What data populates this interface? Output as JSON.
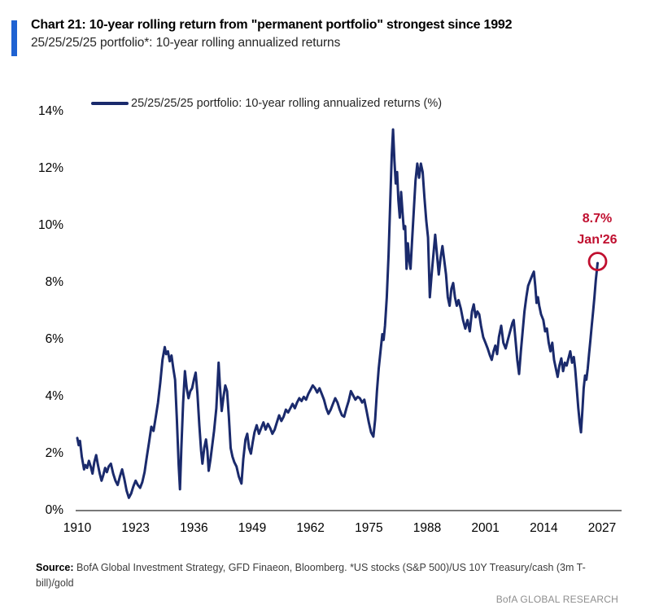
{
  "header": {
    "title": "Chart 21: 10-year rolling return from \"permanent portfolio\" strongest since 1992",
    "subtitle": "25/25/25/25 portfolio*: 10-year rolling annualized returns",
    "accent_color": "#1f62d2"
  },
  "legend": {
    "label": "25/25/25/25 portfolio: 10-year rolling annualized returns (%)"
  },
  "annotation": {
    "value": "8.7%",
    "date": "Jan'26",
    "color": "#c00f2f"
  },
  "footer": {
    "source_label": "Source:",
    "source_line1": "BofA Global Investment Strategy, GFD Finaeon, Bloomberg. *US stocks (S&P 500)/US 10Y Treasury/cash (3m T-",
    "source_line2": "bill)/gold",
    "branding": "BofA GLOBAL RESEARCH"
  },
  "chart_data": {
    "type": "line",
    "title": "25/25/25/25 portfolio: 10-year rolling annualized returns (%)",
    "xlabel": "",
    "ylabel": "",
    "xlim": [
      1909,
      2031
    ],
    "ylim": [
      0,
      14
    ],
    "grid": false,
    "legend_position": "top-left",
    "x_ticks": [
      1910,
      1923,
      1936,
      1949,
      1962,
      1975,
      1988,
      2001,
      2014,
      2027
    ],
    "y_ticks": [
      0,
      2,
      4,
      6,
      8,
      10,
      12,
      14
    ],
    "y_tick_suffix": "%",
    "axis_color": "#4d4d4d",
    "highlight_point": {
      "x": 2026.0,
      "y": 8.7,
      "label": "8.7%",
      "date": "Jan'26",
      "ring_color": "#c00f2f"
    },
    "series": [
      {
        "name": "25/25/25/25 portfolio: 10-year rolling annualized returns (%)",
        "color": "#1a2a6c",
        "points": [
          [
            1910.0,
            2.55
          ],
          [
            1910.3,
            2.3
          ],
          [
            1910.6,
            2.45
          ],
          [
            1911.0,
            1.9
          ],
          [
            1911.5,
            1.45
          ],
          [
            1911.8,
            1.6
          ],
          [
            1912.2,
            1.5
          ],
          [
            1912.6,
            1.75
          ],
          [
            1913.0,
            1.55
          ],
          [
            1913.4,
            1.3
          ],
          [
            1913.8,
            1.7
          ],
          [
            1914.2,
            1.95
          ],
          [
            1914.6,
            1.6
          ],
          [
            1915.0,
            1.3
          ],
          [
            1915.4,
            1.05
          ],
          [
            1915.8,
            1.25
          ],
          [
            1916.2,
            1.5
          ],
          [
            1916.6,
            1.35
          ],
          [
            1917.0,
            1.55
          ],
          [
            1917.5,
            1.65
          ],
          [
            1918.0,
            1.3
          ],
          [
            1918.5,
            1.05
          ],
          [
            1919.0,
            0.9
          ],
          [
            1919.5,
            1.2
          ],
          [
            1920.0,
            1.45
          ],
          [
            1920.5,
            1.1
          ],
          [
            1921.0,
            0.7
          ],
          [
            1921.5,
            0.45
          ],
          [
            1922.0,
            0.6
          ],
          [
            1922.5,
            0.85
          ],
          [
            1923.0,
            1.05
          ],
          [
            1923.5,
            0.9
          ],
          [
            1924.0,
            0.8
          ],
          [
            1924.5,
            1.0
          ],
          [
            1925.0,
            1.35
          ],
          [
            1925.5,
            1.9
          ],
          [
            1926.0,
            2.4
          ],
          [
            1926.5,
            2.95
          ],
          [
            1927.0,
            2.8
          ],
          [
            1927.5,
            3.3
          ],
          [
            1928.0,
            3.8
          ],
          [
            1928.5,
            4.5
          ],
          [
            1929.0,
            5.3
          ],
          [
            1929.5,
            5.75
          ],
          [
            1929.8,
            5.5
          ],
          [
            1930.2,
            5.6
          ],
          [
            1930.6,
            5.25
          ],
          [
            1931.0,
            5.45
          ],
          [
            1931.4,
            5.0
          ],
          [
            1931.8,
            4.6
          ],
          [
            1932.2,
            3.2
          ],
          [
            1932.6,
            1.6
          ],
          [
            1932.9,
            0.75
          ],
          [
            1933.2,
            2.2
          ],
          [
            1933.6,
            3.8
          ],
          [
            1934.0,
            4.9
          ],
          [
            1934.4,
            4.3
          ],
          [
            1934.8,
            3.95
          ],
          [
            1935.2,
            4.2
          ],
          [
            1935.6,
            4.3
          ],
          [
            1936.0,
            4.6
          ],
          [
            1936.4,
            4.85
          ],
          [
            1936.8,
            4.1
          ],
          [
            1937.2,
            3.0
          ],
          [
            1937.6,
            2.1
          ],
          [
            1937.9,
            1.65
          ],
          [
            1938.3,
            2.2
          ],
          [
            1938.7,
            2.5
          ],
          [
            1939.0,
            2.1
          ],
          [
            1939.3,
            1.4
          ],
          [
            1939.7,
            1.8
          ],
          [
            1940.1,
            2.3
          ],
          [
            1940.5,
            2.8
          ],
          [
            1941.0,
            3.6
          ],
          [
            1941.5,
            5.2
          ],
          [
            1941.8,
            4.4
          ],
          [
            1942.2,
            3.5
          ],
          [
            1942.6,
            4.0
          ],
          [
            1943.0,
            4.4
          ],
          [
            1943.4,
            4.2
          ],
          [
            1943.8,
            3.3
          ],
          [
            1944.2,
            2.2
          ],
          [
            1944.6,
            1.9
          ],
          [
            1945.0,
            1.7
          ],
          [
            1945.5,
            1.55
          ],
          [
            1946.0,
            1.2
          ],
          [
            1946.6,
            0.95
          ],
          [
            1947.0,
            1.8
          ],
          [
            1947.5,
            2.5
          ],
          [
            1947.9,
            2.7
          ],
          [
            1948.3,
            2.2
          ],
          [
            1948.7,
            2.0
          ],
          [
            1949.1,
            2.4
          ],
          [
            1949.5,
            2.75
          ],
          [
            1950.0,
            3.0
          ],
          [
            1950.5,
            2.7
          ],
          [
            1951.0,
            2.9
          ],
          [
            1951.5,
            3.1
          ],
          [
            1952.0,
            2.85
          ],
          [
            1952.5,
            3.05
          ],
          [
            1953.0,
            2.9
          ],
          [
            1953.5,
            2.7
          ],
          [
            1954.0,
            2.85
          ],
          [
            1954.5,
            3.1
          ],
          [
            1955.0,
            3.35
          ],
          [
            1955.5,
            3.15
          ],
          [
            1956.0,
            3.3
          ],
          [
            1956.5,
            3.55
          ],
          [
            1957.0,
            3.45
          ],
          [
            1957.5,
            3.6
          ],
          [
            1958.0,
            3.75
          ],
          [
            1958.5,
            3.6
          ],
          [
            1959.0,
            3.8
          ],
          [
            1959.5,
            3.95
          ],
          [
            1960.0,
            3.85
          ],
          [
            1960.5,
            4.0
          ],
          [
            1961.0,
            3.9
          ],
          [
            1961.5,
            4.1
          ],
          [
            1962.0,
            4.25
          ],
          [
            1962.5,
            4.4
          ],
          [
            1963.0,
            4.3
          ],
          [
            1963.5,
            4.15
          ],
          [
            1964.0,
            4.3
          ],
          [
            1964.5,
            4.1
          ],
          [
            1965.0,
            3.9
          ],
          [
            1965.5,
            3.6
          ],
          [
            1966.0,
            3.4
          ],
          [
            1966.5,
            3.55
          ],
          [
            1967.0,
            3.75
          ],
          [
            1967.5,
            3.95
          ],
          [
            1968.0,
            3.8
          ],
          [
            1968.5,
            3.55
          ],
          [
            1969.0,
            3.35
          ],
          [
            1969.5,
            3.3
          ],
          [
            1970.0,
            3.6
          ],
          [
            1970.5,
            3.85
          ],
          [
            1971.0,
            4.2
          ],
          [
            1971.5,
            4.05
          ],
          [
            1972.0,
            3.9
          ],
          [
            1972.5,
            4.0
          ],
          [
            1973.0,
            3.95
          ],
          [
            1973.5,
            3.8
          ],
          [
            1974.0,
            3.9
          ],
          [
            1974.5,
            3.5
          ],
          [
            1975.0,
            3.1
          ],
          [
            1975.5,
            2.75
          ],
          [
            1976.0,
            2.6
          ],
          [
            1976.4,
            3.2
          ],
          [
            1976.8,
            4.2
          ],
          [
            1977.2,
            5.0
          ],
          [
            1977.6,
            5.6
          ],
          [
            1978.0,
            6.2
          ],
          [
            1978.3,
            6.0
          ],
          [
            1978.6,
            6.5
          ],
          [
            1979.0,
            7.5
          ],
          [
            1979.4,
            9.0
          ],
          [
            1979.8,
            11.0
          ],
          [
            1980.1,
            12.5
          ],
          [
            1980.4,
            13.4
          ],
          [
            1980.7,
            12.3
          ],
          [
            1981.0,
            11.5
          ],
          [
            1981.3,
            11.9
          ],
          [
            1981.6,
            10.9
          ],
          [
            1981.9,
            10.3
          ],
          [
            1982.2,
            11.2
          ],
          [
            1982.5,
            10.5
          ],
          [
            1982.8,
            9.9
          ],
          [
            1983.1,
            10.0
          ],
          [
            1983.4,
            8.5
          ],
          [
            1983.7,
            9.4
          ],
          [
            1984.0,
            8.8
          ],
          [
            1984.3,
            8.5
          ],
          [
            1984.6,
            9.4
          ],
          [
            1985.0,
            10.5
          ],
          [
            1985.4,
            11.6
          ],
          [
            1985.8,
            12.2
          ],
          [
            1986.2,
            11.7
          ],
          [
            1986.6,
            12.2
          ],
          [
            1987.0,
            11.9
          ],
          [
            1987.4,
            11.0
          ],
          [
            1987.8,
            10.2
          ],
          [
            1988.2,
            9.6
          ],
          [
            1988.6,
            7.5
          ],
          [
            1989.0,
            8.3
          ],
          [
            1989.4,
            9.0
          ],
          [
            1989.8,
            9.7
          ],
          [
            1990.2,
            9.0
          ],
          [
            1990.6,
            8.3
          ],
          [
            1991.0,
            8.9
          ],
          [
            1991.4,
            9.3
          ],
          [
            1991.8,
            8.8
          ],
          [
            1992.2,
            8.3
          ],
          [
            1992.6,
            7.5
          ],
          [
            1993.0,
            7.2
          ],
          [
            1993.4,
            7.8
          ],
          [
            1993.8,
            8.0
          ],
          [
            1994.2,
            7.5
          ],
          [
            1994.6,
            7.2
          ],
          [
            1995.0,
            7.4
          ],
          [
            1995.5,
            7.1
          ],
          [
            1996.0,
            6.7
          ],
          [
            1996.5,
            6.4
          ],
          [
            1997.0,
            6.7
          ],
          [
            1997.5,
            6.3
          ],
          [
            1998.0,
            7.0
          ],
          [
            1998.4,
            7.25
          ],
          [
            1998.8,
            6.8
          ],
          [
            1999.2,
            7.0
          ],
          [
            1999.6,
            6.9
          ],
          [
            2000.0,
            6.5
          ],
          [
            2000.5,
            6.1
          ],
          [
            2001.0,
            5.9
          ],
          [
            2001.5,
            5.7
          ],
          [
            2002.0,
            5.45
          ],
          [
            2002.4,
            5.3
          ],
          [
            2002.8,
            5.6
          ],
          [
            2003.2,
            5.8
          ],
          [
            2003.6,
            5.5
          ],
          [
            2004.0,
            6.1
          ],
          [
            2004.5,
            6.5
          ],
          [
            2005.0,
            5.9
          ],
          [
            2005.5,
            5.7
          ],
          [
            2006.0,
            6.0
          ],
          [
            2006.5,
            6.3
          ],
          [
            2007.0,
            6.6
          ],
          [
            2007.3,
            6.7
          ],
          [
            2007.7,
            6.0
          ],
          [
            2008.1,
            5.3
          ],
          [
            2008.5,
            4.8
          ],
          [
            2008.9,
            5.6
          ],
          [
            2009.3,
            6.3
          ],
          [
            2009.7,
            7.0
          ],
          [
            2010.1,
            7.5
          ],
          [
            2010.5,
            7.9
          ],
          [
            2011.0,
            8.1
          ],
          [
            2011.5,
            8.3
          ],
          [
            2011.8,
            8.4
          ],
          [
            2012.1,
            7.9
          ],
          [
            2012.4,
            7.3
          ],
          [
            2012.7,
            7.5
          ],
          [
            2013.0,
            7.2
          ],
          [
            2013.4,
            6.9
          ],
          [
            2013.9,
            6.7
          ],
          [
            2014.3,
            6.3
          ],
          [
            2014.7,
            6.4
          ],
          [
            2015.1,
            5.9
          ],
          [
            2015.5,
            5.6
          ],
          [
            2015.9,
            5.9
          ],
          [
            2016.3,
            5.3
          ],
          [
            2016.7,
            5.0
          ],
          [
            2017.1,
            4.7
          ],
          [
            2017.5,
            5.1
          ],
          [
            2017.9,
            5.35
          ],
          [
            2018.3,
            4.9
          ],
          [
            2018.7,
            5.2
          ],
          [
            2019.1,
            5.1
          ],
          [
            2019.5,
            5.35
          ],
          [
            2019.9,
            5.6
          ],
          [
            2020.3,
            5.2
          ],
          [
            2020.7,
            5.4
          ],
          [
            2021.0,
            5.0
          ],
          [
            2021.3,
            4.4
          ],
          [
            2021.7,
            3.6
          ],
          [
            2022.0,
            3.1
          ],
          [
            2022.3,
            2.75
          ],
          [
            2022.6,
            3.5
          ],
          [
            2022.9,
            4.3
          ],
          [
            2023.2,
            4.75
          ],
          [
            2023.5,
            4.6
          ],
          [
            2023.8,
            5.0
          ],
          [
            2024.1,
            5.5
          ],
          [
            2024.4,
            6.0
          ],
          [
            2024.7,
            6.5
          ],
          [
            2025.0,
            7.0
          ],
          [
            2025.3,
            7.5
          ],
          [
            2025.6,
            8.1
          ],
          [
            2026.0,
            8.7
          ]
        ]
      }
    ]
  }
}
